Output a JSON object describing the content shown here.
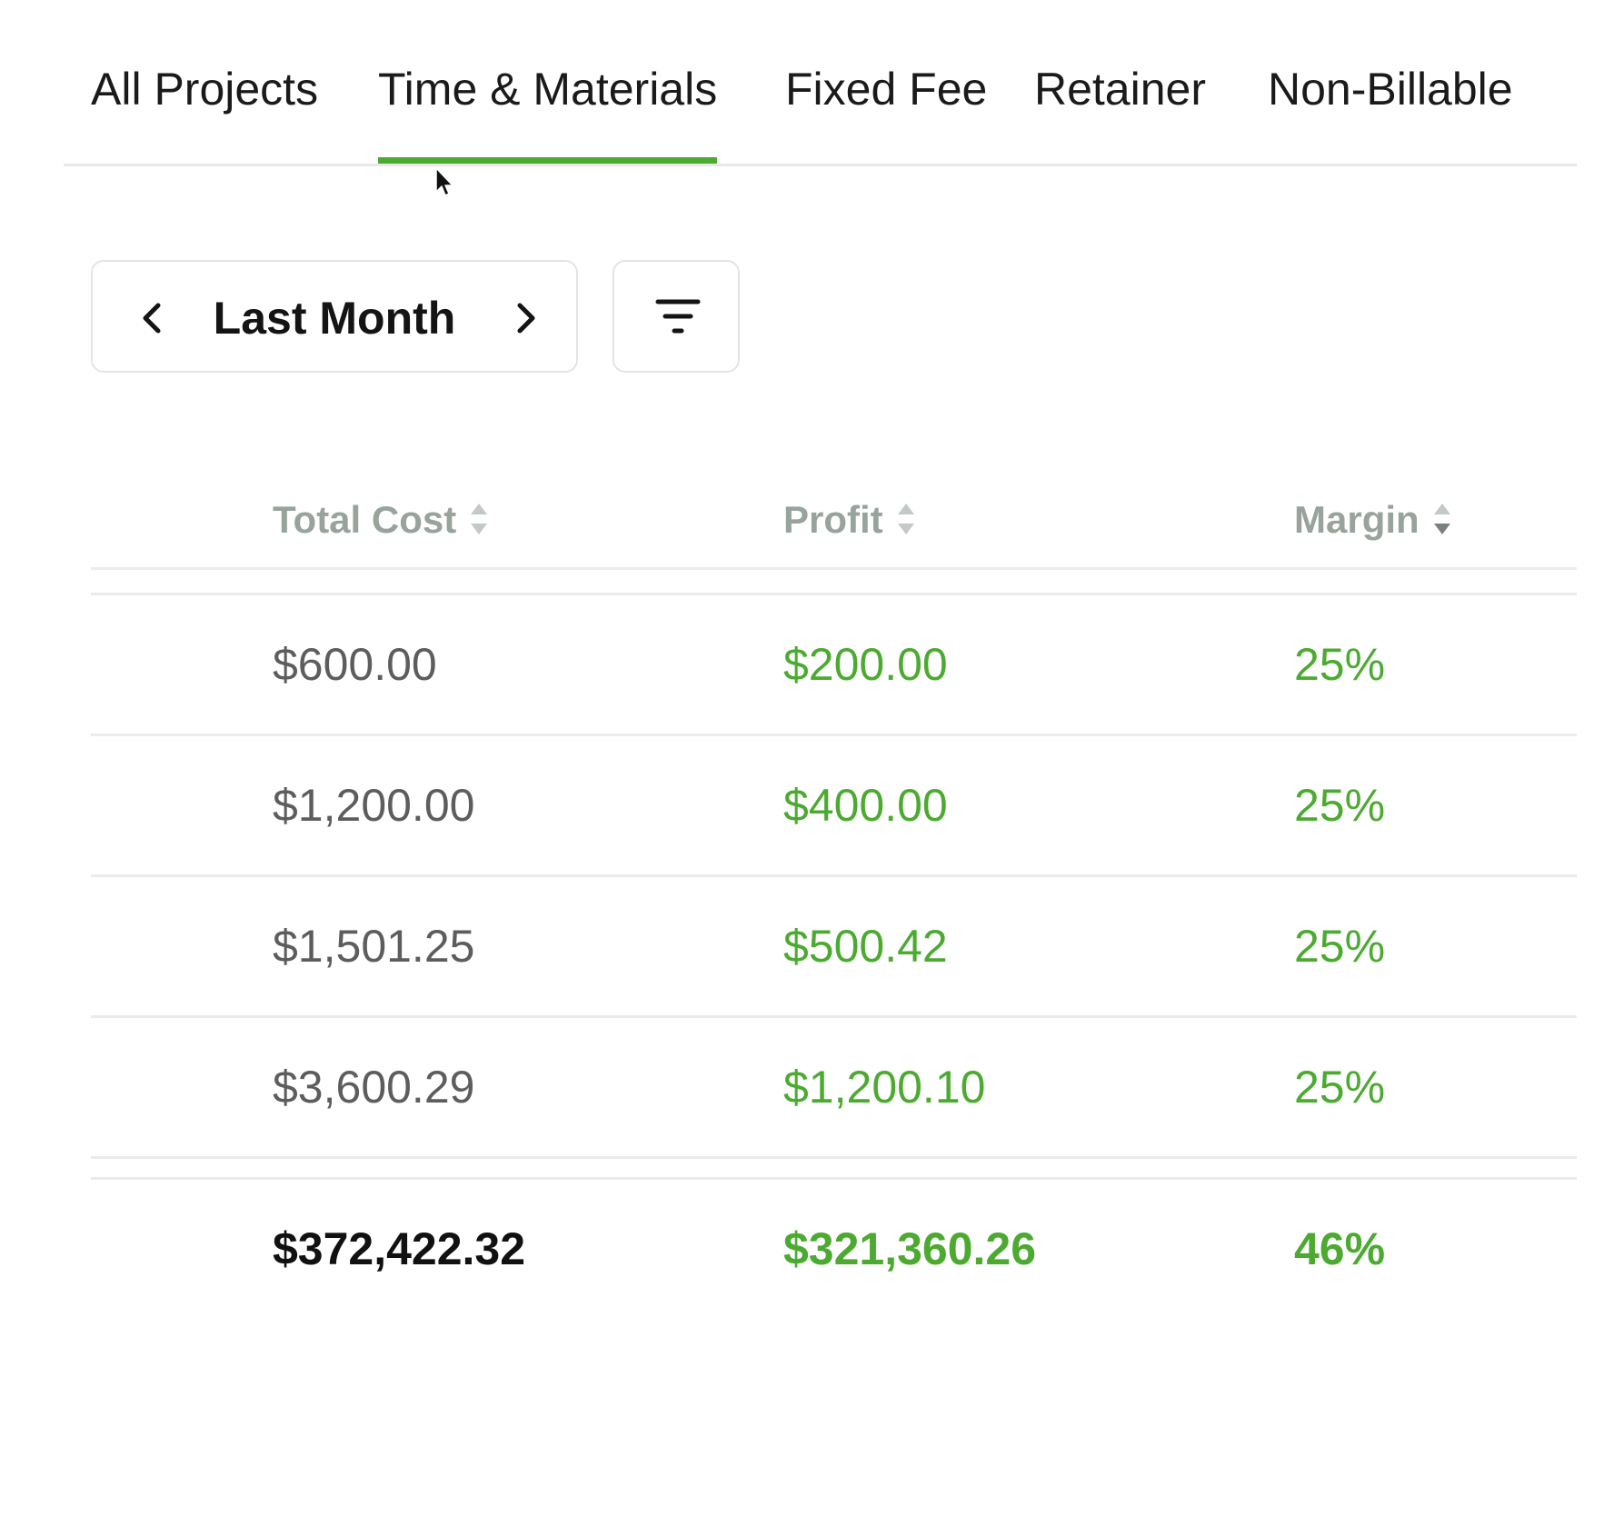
{
  "tabs": [
    {
      "label": "All Projects",
      "active": false
    },
    {
      "label": "Time & Materials",
      "active": true
    },
    {
      "label": "Fixed Fee",
      "active": false
    },
    {
      "label": "Retainer",
      "active": false
    },
    {
      "label": "Non-Billable",
      "active": false
    }
  ],
  "controls": {
    "period_label": "Last Month",
    "prev_icon": "chevron-left-icon",
    "next_icon": "chevron-right-icon",
    "filter_icon": "filter-icon"
  },
  "table": {
    "columns": [
      {
        "label": "Total Cost",
        "sort": "none"
      },
      {
        "label": "Profit",
        "sort": "none"
      },
      {
        "label": "Margin",
        "sort": "descending"
      }
    ],
    "rows": [
      {
        "total_cost": "$600.00",
        "profit": "$200.00",
        "margin": "25%"
      },
      {
        "total_cost": "$1,200.00",
        "profit": "$400.00",
        "margin": "25%"
      },
      {
        "total_cost": "$1,501.25",
        "profit": "$500.42",
        "margin": "25%"
      },
      {
        "total_cost": "$3,600.29",
        "profit": "$1,200.10",
        "margin": "25%"
      }
    ],
    "totals": {
      "total_cost": "$372,422.32",
      "profit": "$321,360.26",
      "margin": "46%"
    }
  },
  "colors": {
    "accent": "#4caa31",
    "header_text": "#98a39c",
    "cost_text": "#5d5d5d",
    "border": "#ebebeb"
  }
}
